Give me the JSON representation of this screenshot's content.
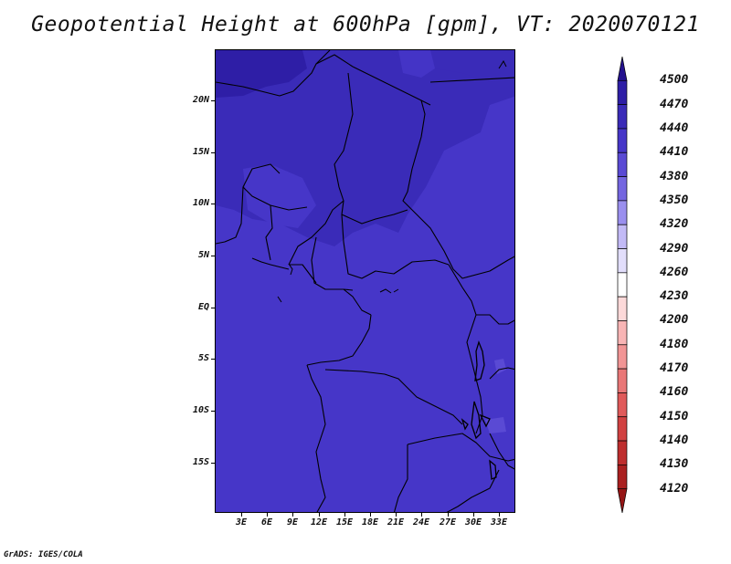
{
  "title": "Geopotential Height at 600hPa [gpm], VT: 2020070121",
  "credit": "GrADS: IGES/COLA",
  "map": {
    "lat_labels": [
      "20N",
      "15N",
      "10N",
      "5N",
      "EQ",
      "5S",
      "10S",
      "15S"
    ],
    "lon_labels": [
      "3E",
      "6E",
      "9E",
      "12E",
      "15E",
      "18E",
      "21E",
      "24E",
      "27E",
      "30E",
      "33E"
    ],
    "fill_colors": {
      "dominant": "#4636c8",
      "higher": "#3a2bb8",
      "highest": "#2e1ea6",
      "lower": "#5a4ad4"
    }
  },
  "colorbar": {
    "levels": [
      "4500",
      "4470",
      "4440",
      "4410",
      "4380",
      "4350",
      "4320",
      "4290",
      "4260",
      "4230",
      "4200",
      "4180",
      "4170",
      "4160",
      "4150",
      "4140",
      "4130",
      "4120"
    ],
    "colors": [
      "#24128e",
      "#2e1ea6",
      "#3a2bb8",
      "#4636c8",
      "#5a4ad4",
      "#7466e0",
      "#9a8fee",
      "#c2baf6",
      "#e2defb",
      "#ffffff",
      "#fcd9d9",
      "#f8b5b5",
      "#f19595",
      "#e97777",
      "#e05a5a",
      "#d14141",
      "#be2e2e",
      "#aa2020",
      "#951515"
    ]
  }
}
